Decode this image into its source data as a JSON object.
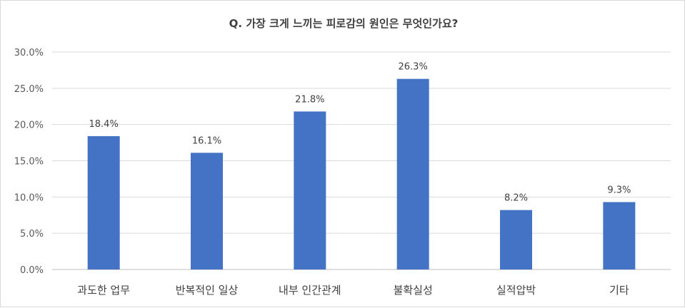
{
  "chart_data": {
    "type": "bar",
    "title": "Q. 가장 크게 느끼는 피로감의 원인은 무엇인가요?",
    "categories": [
      "과도한 업무",
      "반복적인 일상",
      "내부 인간관계",
      "불확실성",
      "실적압박",
      "기타"
    ],
    "values": [
      18.4,
      16.1,
      21.8,
      26.3,
      8.2,
      9.3
    ],
    "data_labels": [
      "18.4%",
      "16.1%",
      "21.8%",
      "26.3%",
      "8.2%",
      "9.3%"
    ],
    "y_ticks": [
      "0.0%",
      "5.0%",
      "10.0%",
      "15.0%",
      "20.0%",
      "25.0%",
      "30.0%"
    ],
    "ylim": [
      0,
      30
    ],
    "xlabel": "",
    "ylabel": "",
    "grid": true,
    "bar_color": "#4472C4"
  }
}
